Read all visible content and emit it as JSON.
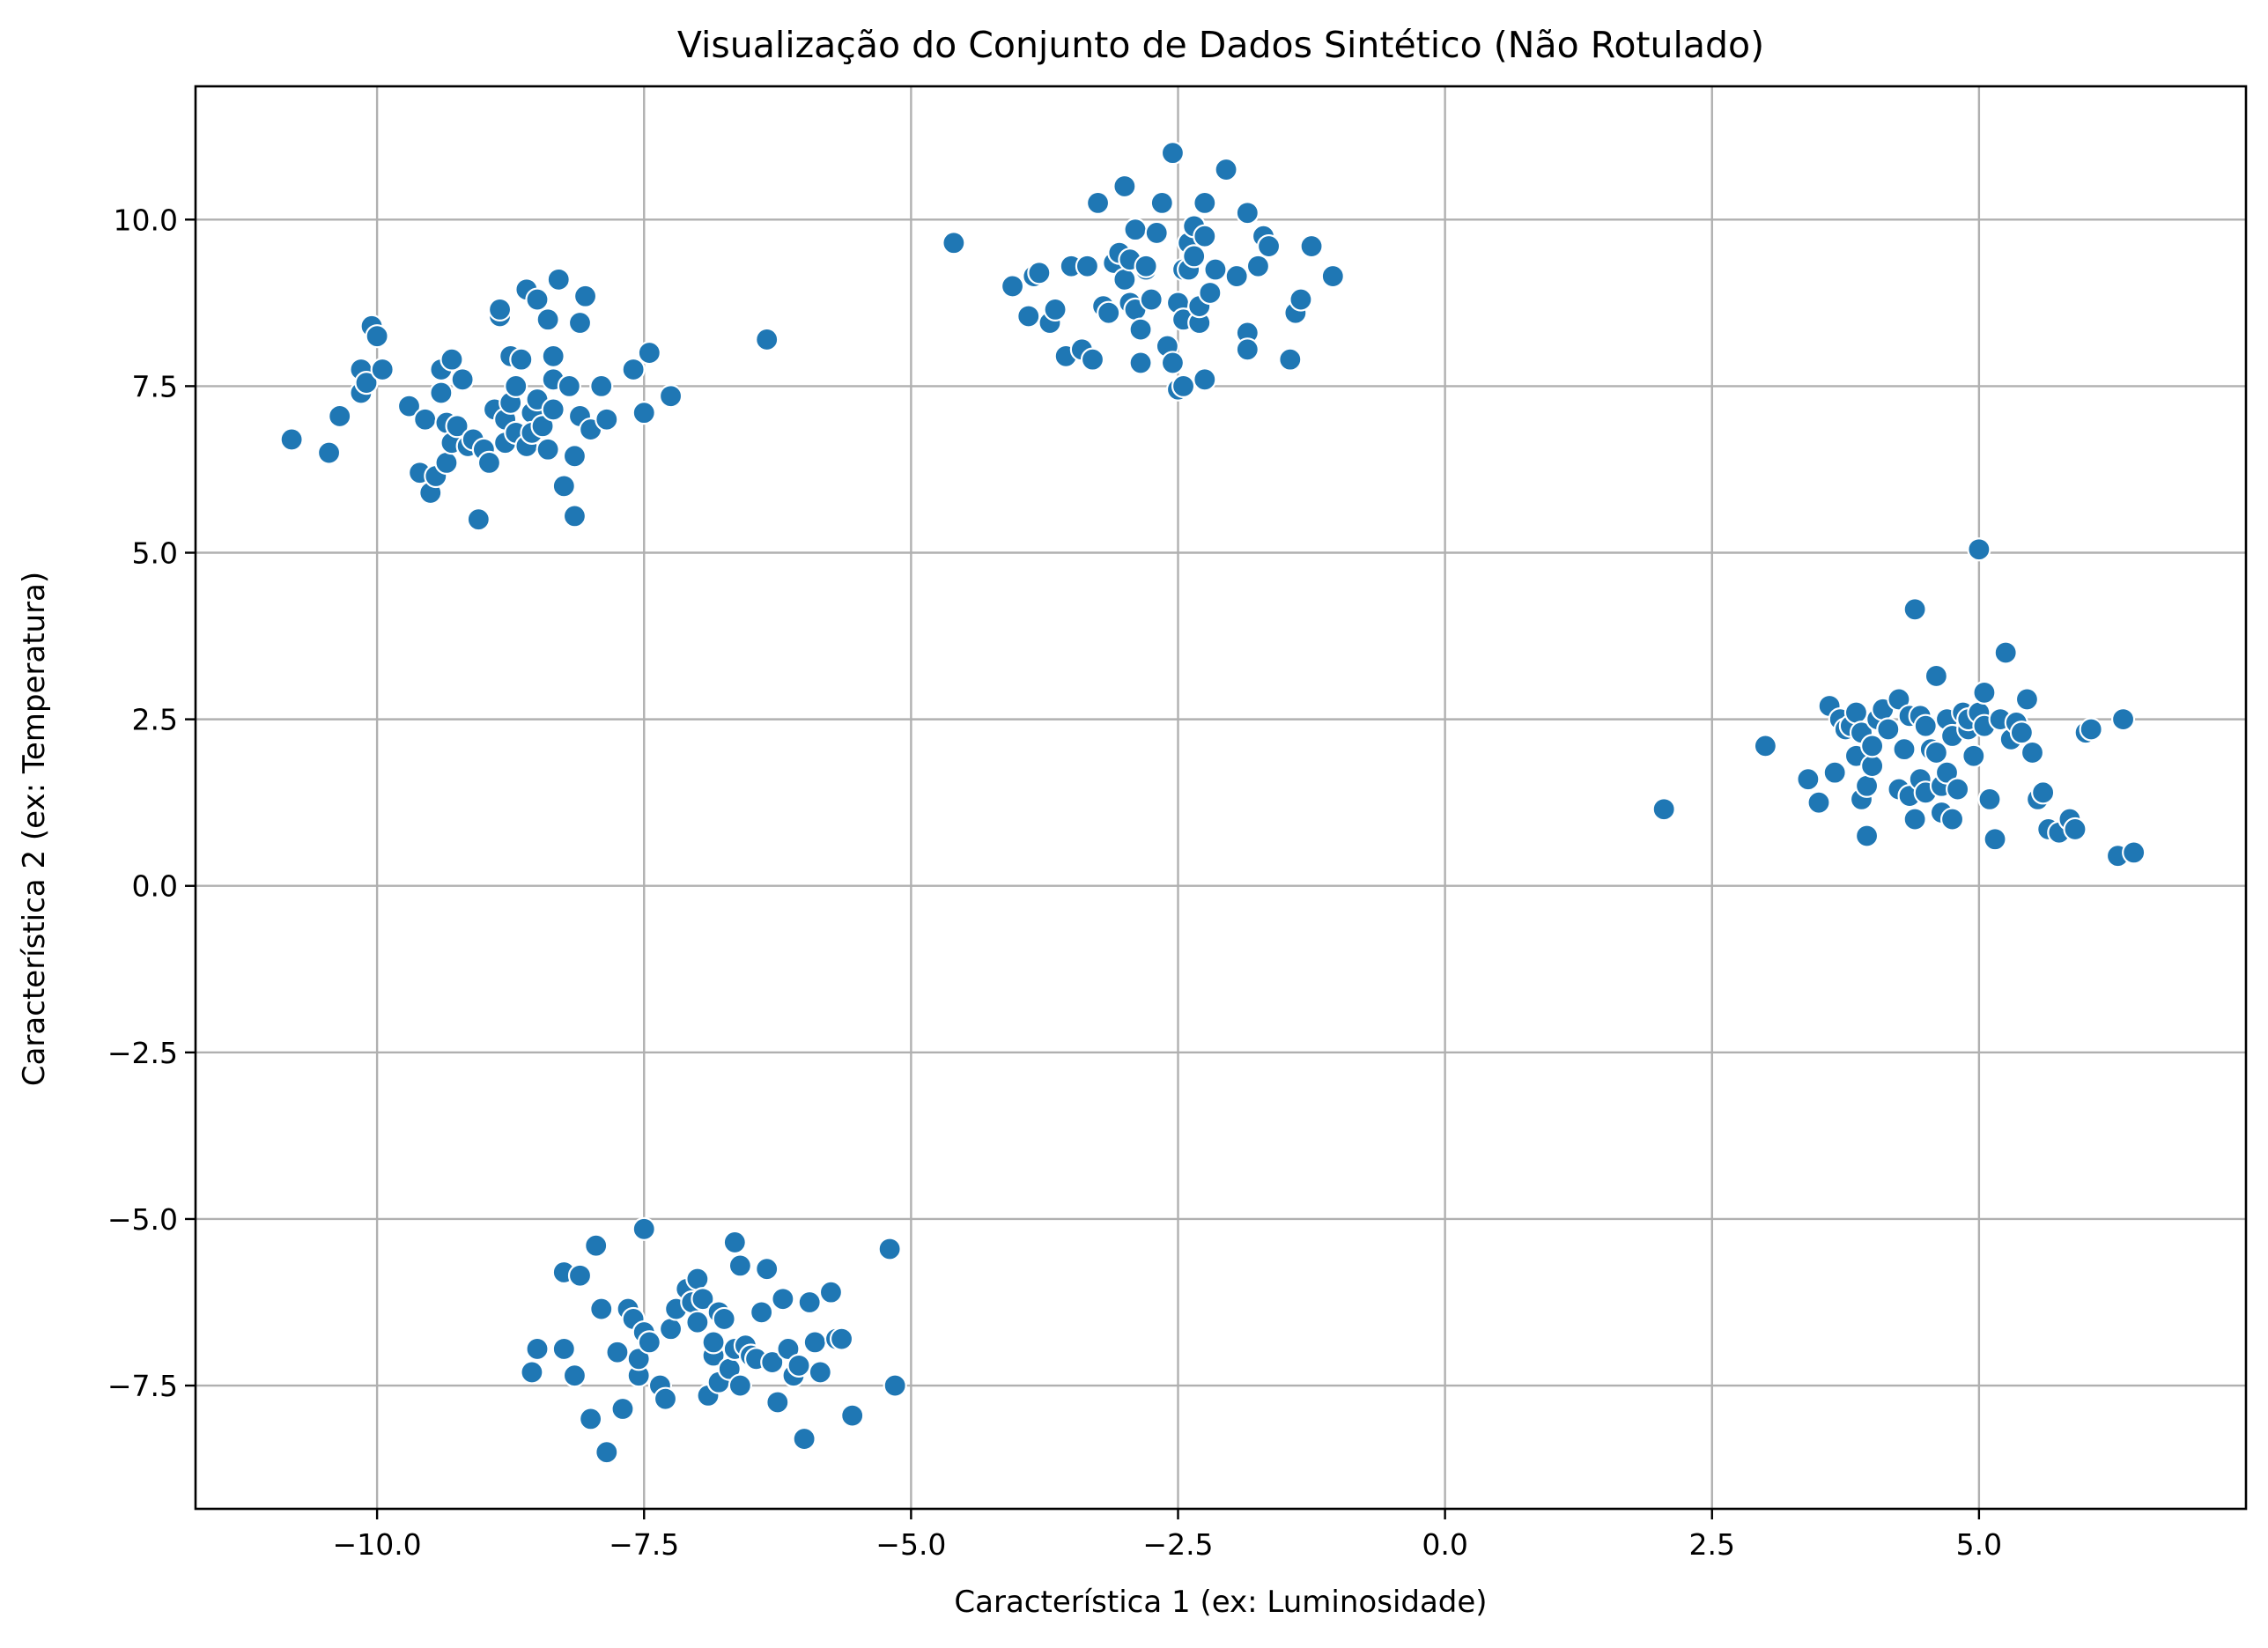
{
  "chart_data": {
    "type": "scatter",
    "title": "Visualização do Conjunto de Dados Sintético (Não Rotulado)",
    "xlabel": "Característica 1 (ex: Luminosidade)",
    "ylabel": "Característica 2 (ex: Temperatura)",
    "xlim": [
      -11.7,
      7.5
    ],
    "ylim": [
      -9.35,
      12.0
    ],
    "xticks": [
      -10.0,
      -7.5,
      -5.0,
      -2.5,
      0.0,
      2.5,
      5.0
    ],
    "xtick_labels": [
      "−10.0",
      "−7.5",
      "−5.0",
      "−2.5",
      "0.0",
      "2.5",
      "5.0"
    ],
    "yticks": [
      -7.5,
      -5.0,
      -2.5,
      0.0,
      2.5,
      5.0,
      7.5,
      10.0
    ],
    "ytick_labels": [
      "−7.5",
      "−5.0",
      "−2.5",
      "0.0",
      "2.5",
      "5.0",
      "7.5",
      "10.0"
    ],
    "grid": true,
    "color": "#1f77b4",
    "series": [
      {
        "name": "cluster-top-left",
        "x": [
          -10.8,
          -10.45,
          -10.35,
          -10.15,
          -10.15,
          -10.1,
          -10.05,
          -10.0,
          -9.95,
          -9.7,
          -9.6,
          -9.55,
          -9.5,
          -9.45,
          -9.4,
          -9.4,
          -9.35,
          -9.35,
          -9.3,
          -9.3,
          -9.25,
          -9.2,
          -9.15,
          -9.1,
          -9.05,
          -9.0,
          -8.95,
          -8.9,
          -8.85,
          -8.85,
          -8.8,
          -8.8,
          -8.75,
          -8.75,
          -8.7,
          -8.7,
          -8.65,
          -8.6,
          -8.6,
          -8.55,
          -8.55,
          -8.5,
          -8.5,
          -8.45,
          -8.4,
          -8.4,
          -8.35,
          -8.35,
          -8.35,
          -8.3,
          -8.25,
          -8.2,
          -8.15,
          -8.15,
          -8.1,
          -8.1,
          -8.05,
          -8.0,
          -7.9,
          -7.85,
          -7.6,
          -7.5,
          -7.45,
          -7.25,
          -6.35
        ],
        "y": [
          6.7,
          6.5,
          7.05,
          7.75,
          7.4,
          7.55,
          8.4,
          8.25,
          7.75,
          7.2,
          6.2,
          7.0,
          5.9,
          6.15,
          7.4,
          7.75,
          6.35,
          6.95,
          7.9,
          6.65,
          6.9,
          7.6,
          6.6,
          6.7,
          5.5,
          6.55,
          6.35,
          7.15,
          8.55,
          8.65,
          6.65,
          7.0,
          7.95,
          7.25,
          7.5,
          6.8,
          7.9,
          8.95,
          6.6,
          7.1,
          6.8,
          7.3,
          8.8,
          6.9,
          8.5,
          6.55,
          7.15,
          7.6,
          7.95,
          9.1,
          6.0,
          7.5,
          6.45,
          5.55,
          7.05,
          8.45,
          8.85,
          6.85,
          7.5,
          7.0,
          7.75,
          7.1,
          8.0,
          7.35,
          8.2
        ]
      },
      {
        "name": "cluster-top-middle",
        "x": [
          -4.6,
          -4.05,
          -3.9,
          -3.85,
          -3.8,
          -3.7,
          -3.65,
          -3.55,
          -3.5,
          -3.4,
          -3.35,
          -3.3,
          -3.25,
          -3.2,
          -3.15,
          -3.1,
          -3.05,
          -3.0,
          -3.0,
          -2.95,
          -2.95,
          -2.9,
          -2.9,
          -2.85,
          -2.85,
          -2.8,
          -2.8,
          -2.75,
          -2.7,
          -2.65,
          -2.6,
          -2.55,
          -2.55,
          -2.5,
          -2.5,
          -2.45,
          -2.45,
          -2.45,
          -2.4,
          -2.4,
          -2.35,
          -2.35,
          -2.3,
          -2.3,
          -2.25,
          -2.25,
          -2.25,
          -2.2,
          -2.15,
          -2.05,
          -1.95,
          -1.85,
          -1.85,
          -1.85,
          -1.75,
          -1.7,
          -1.65,
          -1.45,
          -1.4,
          -1.35,
          -1.25,
          -1.05
        ],
        "y": [
          9.65,
          9.0,
          8.55,
          9.15,
          9.2,
          8.45,
          8.65,
          7.95,
          9.3,
          8.05,
          9.3,
          7.9,
          10.25,
          8.7,
          8.6,
          9.35,
          9.5,
          9.1,
          10.5,
          8.75,
          9.4,
          9.85,
          8.65,
          7.85,
          8.35,
          9.25,
          9.3,
          8.8,
          9.8,
          10.25,
          8.1,
          7.85,
          11.0,
          8.75,
          7.45,
          9.25,
          8.5,
          7.5,
          9.65,
          9.25,
          9.9,
          9.45,
          8.45,
          8.7,
          7.6,
          9.75,
          10.25,
          8.9,
          9.25,
          10.75,
          9.15,
          10.1,
          8.3,
          8.05,
          9.3,
          9.75,
          9.6,
          7.9,
          8.6,
          8.8,
          9.6,
          9.15
        ]
      },
      {
        "name": "cluster-right",
        "x": [
          2.05,
          3.0,
          3.4,
          3.5,
          3.6,
          3.65,
          3.7,
          3.75,
          3.8,
          3.85,
          3.85,
          3.9,
          3.9,
          3.95,
          3.95,
          4.0,
          4.0,
          4.05,
          4.1,
          4.15,
          4.25,
          4.25,
          4.3,
          4.35,
          4.35,
          4.4,
          4.4,
          4.45,
          4.45,
          4.5,
          4.5,
          4.55,
          4.6,
          4.6,
          4.65,
          4.65,
          4.7,
          4.7,
          4.75,
          4.75,
          4.8,
          4.85,
          4.9,
          4.9,
          4.95,
          5.0,
          5.0,
          5.05,
          5.05,
          5.1,
          5.15,
          5.2,
          5.25,
          5.3,
          5.35,
          5.4,
          5.45,
          5.5,
          5.55,
          5.6,
          5.65,
          5.75,
          5.85,
          5.9,
          6.0,
          6.05,
          6.3,
          6.35,
          6.45
        ],
        "y": [
          1.15,
          2.1,
          1.6,
          1.25,
          2.7,
          1.7,
          2.5,
          2.35,
          2.4,
          2.6,
          1.95,
          1.3,
          2.3,
          0.75,
          1.5,
          1.8,
          2.1,
          2.5,
          2.65,
          2.35,
          1.45,
          2.8,
          2.05,
          2.55,
          1.35,
          4.15,
          1.0,
          1.6,
          2.55,
          1.4,
          2.4,
          2.05,
          2.0,
          3.15,
          1.5,
          1.1,
          2.5,
          1.7,
          2.25,
          1.0,
          1.45,
          2.6,
          2.35,
          2.5,
          1.95,
          5.05,
          2.6,
          2.4,
          2.9,
          1.3,
          0.7,
          2.5,
          3.5,
          2.2,
          2.45,
          2.3,
          2.8,
          2.0,
          1.3,
          1.4,
          0.85,
          0.8,
          1.0,
          0.85,
          2.3,
          2.35,
          0.45,
          2.5,
          0.5
        ]
      },
      {
        "name": "cluster-bottom",
        "x": [
          -8.55,
          -8.5,
          -8.25,
          -8.25,
          -8.15,
          -8.1,
          -8.0,
          -7.95,
          -7.9,
          -7.85,
          -7.75,
          -7.7,
          -7.65,
          -7.6,
          -7.55,
          -7.55,
          -7.5,
          -7.5,
          -7.45,
          -7.35,
          -7.3,
          -7.25,
          -7.2,
          -7.1,
          -7.05,
          -7.0,
          -7.0,
          -6.95,
          -6.9,
          -6.85,
          -6.85,
          -6.8,
          -6.8,
          -6.75,
          -6.7,
          -6.65,
          -6.65,
          -6.6,
          -6.6,
          -6.55,
          -6.5,
          -6.45,
          -6.4,
          -6.35,
          -6.3,
          -6.25,
          -6.2,
          -6.15,
          -6.1,
          -6.05,
          -6.0,
          -5.95,
          -5.9,
          -5.85,
          -5.75,
          -5.7,
          -5.65,
          -5.55,
          -5.2,
          -5.15
        ],
        "y": [
          -7.3,
          -6.95,
          -5.8,
          -6.95,
          -7.35,
          -5.85,
          -8.0,
          -5.4,
          -6.35,
          -8.5,
          -7.0,
          -7.85,
          -6.35,
          -6.5,
          -7.35,
          -7.1,
          -5.15,
          -6.7,
          -6.85,
          -7.5,
          -7.7,
          -6.65,
          -6.35,
          -6.05,
          -6.25,
          -5.9,
          -6.55,
          -6.2,
          -7.65,
          -7.05,
          -6.85,
          -6.4,
          -7.45,
          -6.5,
          -7.25,
          -5.35,
          -6.95,
          -5.7,
          -7.5,
          -6.9,
          -7.05,
          -7.1,
          -6.4,
          -5.75,
          -7.15,
          -7.75,
          -6.2,
          -6.95,
          -7.35,
          -7.2,
          -8.3,
          -6.25,
          -6.85,
          -7.3,
          -6.1,
          -6.8,
          -6.8,
          -7.95,
          -5.45,
          -7.5
        ]
      }
    ]
  }
}
